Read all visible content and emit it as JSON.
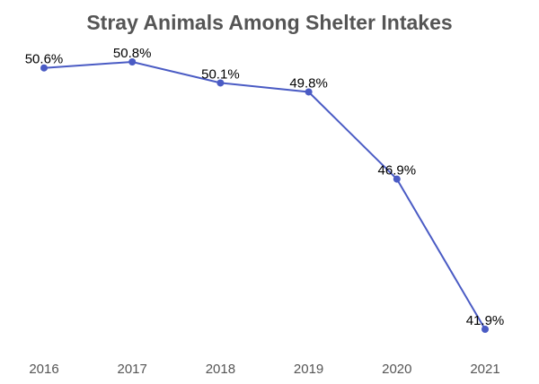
{
  "chart_data": {
    "type": "line",
    "title": "Stray Animals Among Shelter Intakes",
    "xlabel": "",
    "ylabel": "",
    "categories": [
      "2016",
      "2017",
      "2018",
      "2019",
      "2020",
      "2021"
    ],
    "values": [
      50.6,
      50.8,
      50.1,
      49.8,
      46.9,
      41.9
    ],
    "value_labels": [
      "50.6%",
      "50.8%",
      "50.1%",
      "49.8%",
      "46.9%",
      "41.9%"
    ],
    "value_suffix": "%",
    "grid": false,
    "legend": "none",
    "line_color": "#4a5bc4"
  }
}
